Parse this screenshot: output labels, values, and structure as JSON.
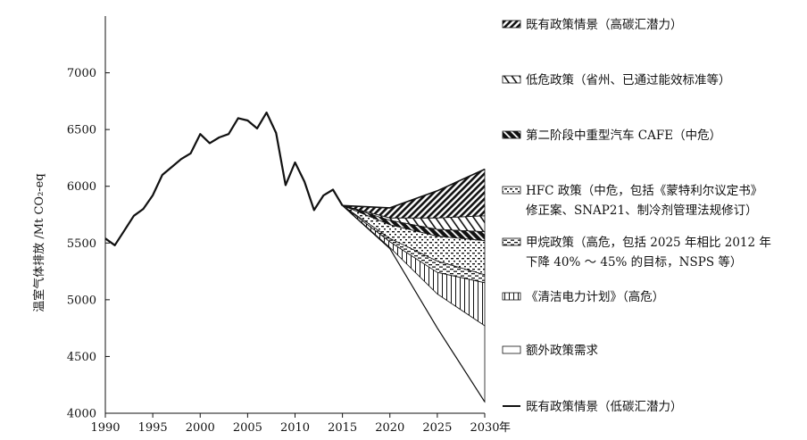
{
  "chart_data": {
    "type": "area",
    "ylabel": "温室气体排放 /Mt CO₂-eq",
    "xunit": "年",
    "xlim": [
      1990,
      2030
    ],
    "ylim": [
      4000,
      7500
    ],
    "x_ticks": [
      1990,
      1995,
      2000,
      2005,
      2010,
      2015,
      2020,
      2025,
      2030
    ],
    "y_ticks": [
      4000,
      4500,
      5000,
      5500,
      6000,
      6500,
      7000
    ],
    "grid": false,
    "legend_position": "right",
    "history": {
      "x": [
        1990,
        1991,
        1992,
        1993,
        1994,
        1995,
        1996,
        1997,
        1998,
        1999,
        2000,
        2001,
        2002,
        2003,
        2004,
        2005,
        2006,
        2007,
        2008,
        2009,
        2010,
        2011,
        2012,
        2013,
        2014,
        2015
      ],
      "y": [
        5540,
        5480,
        5610,
        5740,
        5800,
        5920,
        6100,
        6170,
        6240,
        6290,
        6460,
        6380,
        6430,
        6460,
        6600,
        6580,
        6510,
        6650,
        6470,
        6010,
        6210,
        6040,
        5790,
        5920,
        5970,
        5830
      ]
    },
    "projection_x": [
      2015,
      2020,
      2025,
      2030
    ],
    "boundaries": [
      {
        "name": "既有政策情景（高碳汇潜力）",
        "values": [
          5830,
          5810,
          5960,
          6150
        ]
      },
      {
        "name": "低危政策（省州、已通过能效标准等）",
        "values": [
          5830,
          5720,
          5720,
          5740
        ]
      },
      {
        "name": "第二阶段中重型汽车 CAFE（中危）",
        "values": [
          5830,
          5700,
          5620,
          5600
        ]
      },
      {
        "name": "HFC 政策（中危，包括《蒙特利尔议定书》修正案、SNAP21、制冷剂管理法规修订）",
        "values": [
          5830,
          5660,
          5560,
          5520
        ]
      },
      {
        "name": "甲烷政策（高危，包括 2025 年相比 2012 年下降 40% ～ 45% 的目标，NSPS 等）",
        "values": [
          5830,
          5540,
          5340,
          5220
        ]
      },
      {
        "name": "《清洁电力计划》（高危）",
        "values": [
          5830,
          5510,
          5240,
          5150
        ]
      },
      {
        "name": "额外政策需求",
        "values": [
          5830,
          5460,
          5050,
          4770
        ]
      },
      {
        "name": "既有政策情景（低碳汇潜力）",
        "values": [
          5830,
          5450,
          4750,
          4100
        ]
      }
    ],
    "legend": [
      {
        "label": "既有政策情景（高碳汇潜力）",
        "pattern": "hatch-dense"
      },
      {
        "label": "低危政策（省州、已通过能效标准等）",
        "pattern": "hatch-wavy"
      },
      {
        "label": "第二阶段中重型汽车 CAFE（中危）",
        "pattern": "hatch-dark"
      },
      {
        "label": "HFC 政策（中危，包括《蒙特利尔议定书》",
        "label2": "修正案、SNAP21、制冷剂管理法规修订）",
        "pattern": "dots"
      },
      {
        "label": "甲烷政策（高危，包括 2025 年相比 2012 年",
        "label2": "下降 40% ～ 45% 的目标，NSPS 等）",
        "pattern": "dashes"
      },
      {
        "label": "《清洁电力计划》（高危）",
        "pattern": "vlines"
      },
      {
        "label": "额外政策需求",
        "pattern": "blank"
      },
      {
        "label": "既有政策情景（低碳汇潜力）",
        "pattern": "line"
      }
    ]
  }
}
